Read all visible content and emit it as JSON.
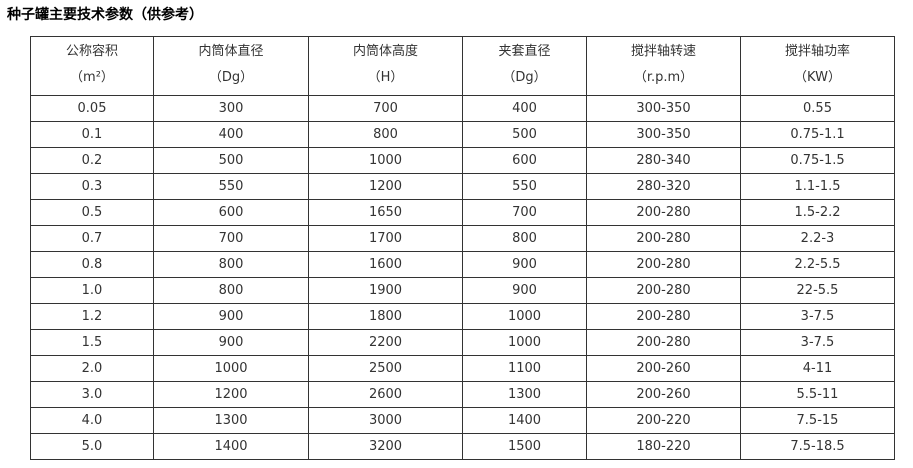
{
  "title": "种子罐主要技术参数（供参考）",
  "table": {
    "headers": [
      {
        "name": "公称容积",
        "unit": "（m²）"
      },
      {
        "name": "内筒体直径",
        "unit": "（Dg）"
      },
      {
        "name": "内筒体高度",
        "unit": "（H）"
      },
      {
        "name": "夹套直径",
        "unit": "（Dg）"
      },
      {
        "name": "搅拌轴转速",
        "unit": "（r.p.m）"
      },
      {
        "name": "搅拌轴功率",
        "unit": "（KW）"
      }
    ],
    "rows": [
      [
        "0.05",
        "300",
        "700",
        "400",
        "300-350",
        "0.55"
      ],
      [
        "0.1",
        "400",
        "800",
        "500",
        "300-350",
        "0.75-1.1"
      ],
      [
        "0.2",
        "500",
        "1000",
        "600",
        "280-340",
        "0.75-1.5"
      ],
      [
        "0.3",
        "550",
        "1200",
        "550",
        "280-320",
        "1.1-1.5"
      ],
      [
        "0.5",
        "600",
        "1650",
        "700",
        "200-280",
        "1.5-2.2"
      ],
      [
        "0.7",
        "700",
        "1700",
        "800",
        "200-280",
        "2.2-3"
      ],
      [
        "0.8",
        "800",
        "1600",
        "900",
        "200-280",
        "2.2-5.5"
      ],
      [
        "1.0",
        "800",
        "1900",
        "900",
        "200-280",
        "22-5.5"
      ],
      [
        "1.2",
        "900",
        "1800",
        "1000",
        "200-280",
        "3-7.5"
      ],
      [
        "1.5",
        "900",
        "2200",
        "1000",
        "200-280",
        "3-7.5"
      ],
      [
        "2.0",
        "1000",
        "2500",
        "1100",
        "200-260",
        "4-11"
      ],
      [
        "3.0",
        "1200",
        "2600",
        "1300",
        "200-260",
        "5.5-11"
      ],
      [
        "4.0",
        "1300",
        "3000",
        "1400",
        "200-220",
        "7.5-15"
      ],
      [
        "5.0",
        "1400",
        "3200",
        "1500",
        "180-220",
        "7.5-18.5"
      ]
    ]
  }
}
